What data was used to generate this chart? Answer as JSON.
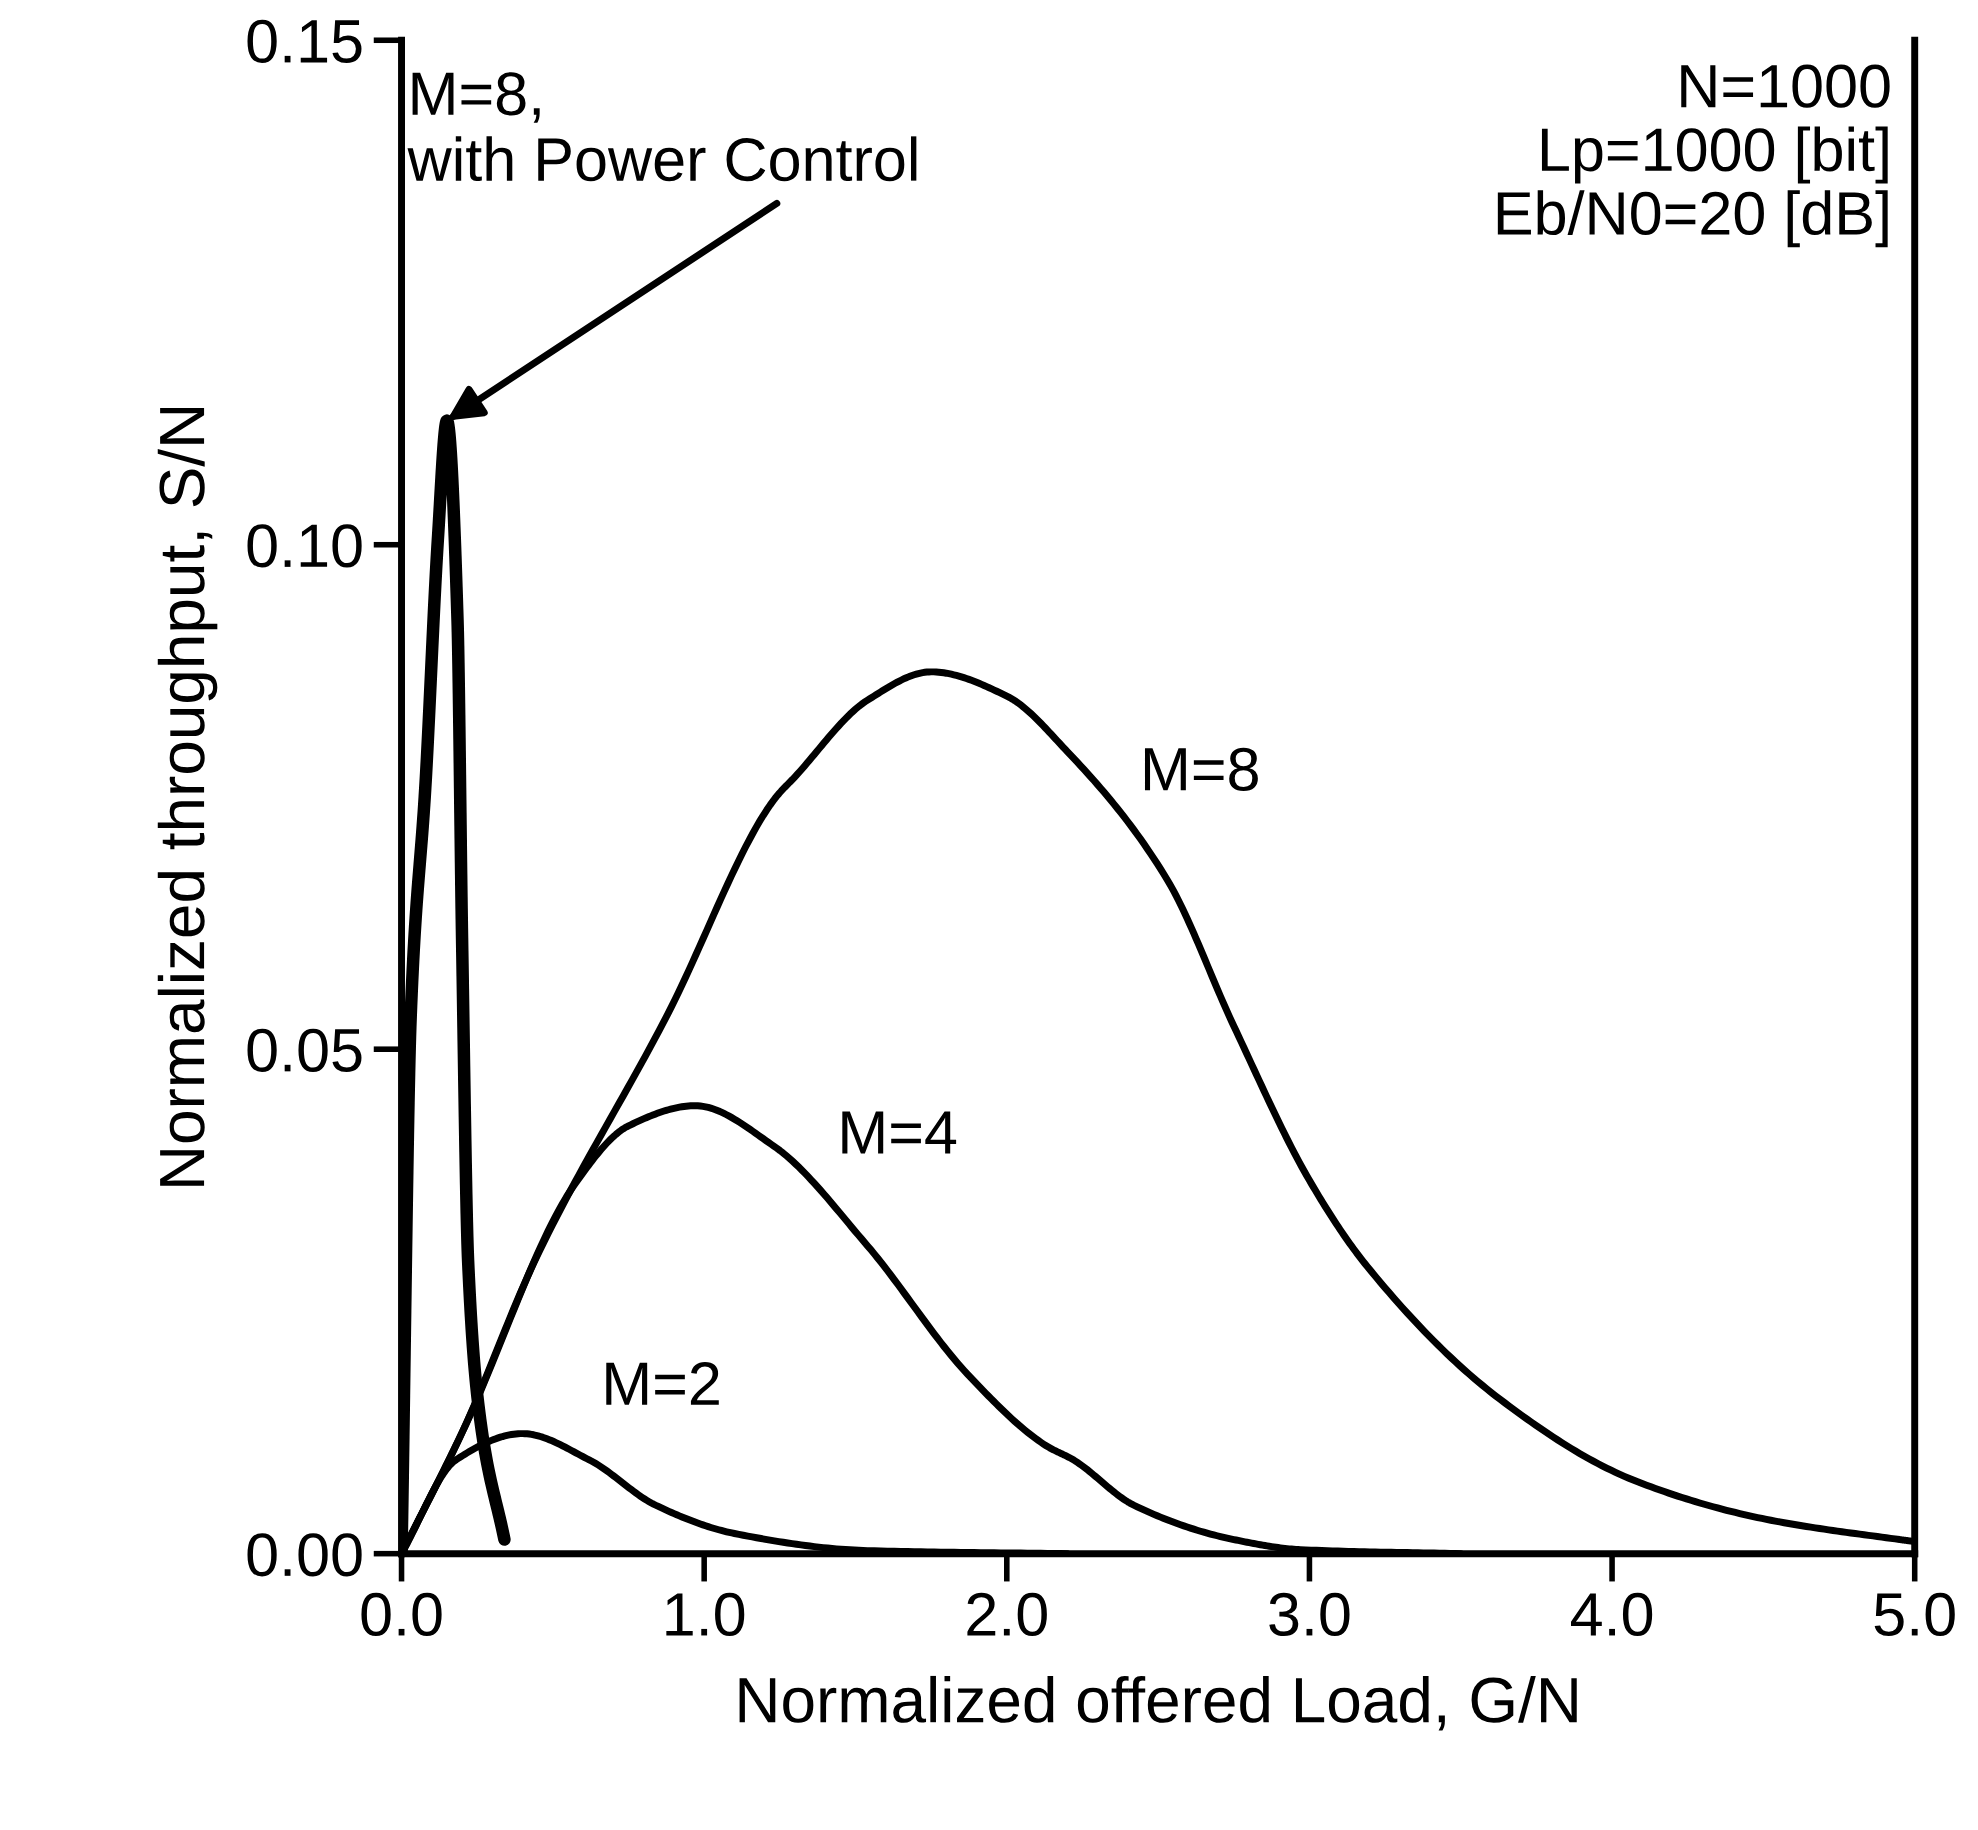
{
  "chart_data": {
    "type": "line",
    "xlabel": "Normalized offered Load, G/N",
    "ylabel": "Normalized throughput, S/N",
    "xlim": [
      0,
      5
    ],
    "ylim": [
      0,
      0.15
    ],
    "xticks": [
      {
        "value": 0,
        "label": "0.0"
      },
      {
        "value": 1,
        "label": "1.0"
      },
      {
        "value": 2,
        "label": "2.0"
      },
      {
        "value": 3,
        "label": "3.0"
      },
      {
        "value": 4,
        "label": "4.0"
      },
      {
        "value": 5,
        "label": "5.0"
      }
    ],
    "yticks": [
      {
        "value": 0,
        "label": "0.00"
      },
      {
        "value": 0.05,
        "label": "0.05"
      },
      {
        "value": 0.1,
        "label": "0.10"
      },
      {
        "value": 0.15,
        "label": "0.15"
      }
    ],
    "grid": false,
    "legend": false,
    "marker": "none",
    "line_style": "solid",
    "series": [
      {
        "name": "M=8",
        "color": "#000000",
        "x": [
          0,
          0.2,
          0.44,
          0.88,
          1.23,
          1.3,
          1.54,
          1.75,
          2.0,
          2.2,
          2.53,
          2.75,
          3.0,
          3.19,
          3.63,
          4.07,
          4.51,
          4.95,
          5.0
        ],
        "values": [
          0,
          0.012,
          0.029,
          0.0535,
          0.0747,
          0.077,
          0.0846,
          0.0874,
          0.085,
          0.0795,
          0.0668,
          0.0523,
          0.037,
          0.0285,
          0.0153,
          0.0073,
          0.0034,
          0.0014,
          0.0012
        ]
      },
      {
        "name": "M=4",
        "color": "#000000",
        "x": [
          0,
          0.2,
          0.57,
          0.75,
          0.97,
          1.23,
          1.54,
          1.87,
          2.13,
          2.22,
          2.42,
          2.75,
          2.97,
          3.5
        ],
        "values": [
          0,
          0.012,
          0.0365,
          0.0424,
          0.0444,
          0.0404,
          0.0305,
          0.0178,
          0.0107,
          0.0093,
          0.0048,
          0.0014,
          0.0004,
          0
        ]
      },
      {
        "name": "M=2",
        "color": "#000000",
        "x": [
          0,
          0.18,
          0.4,
          0.62,
          0.84,
          1.1,
          1.54,
          2.2
        ],
        "values": [
          0,
          0.0093,
          0.0119,
          0.0093,
          0.0048,
          0.002,
          0.0003,
          0
        ]
      },
      {
        "color": "#000000",
        "x": [
          0,
          0.03,
          0.08,
          0.12,
          0.15,
          0.185,
          0.2,
          0.22,
          0.26,
          0.34
        ],
        "values": [
          0,
          0.053,
          0.0767,
          0.1005,
          0.1123,
          0.0925,
          0.061,
          0.029,
          0.0133,
          0.0014
        ]
      }
    ],
    "annotations": [
      {
        "text": "M=8,\nwith Power Control",
        "x": 0.15,
        "y": 0.1123
      },
      "N=1000\nLp=1000 [bit]\nEb/N0=20 [dB]"
    ]
  }
}
